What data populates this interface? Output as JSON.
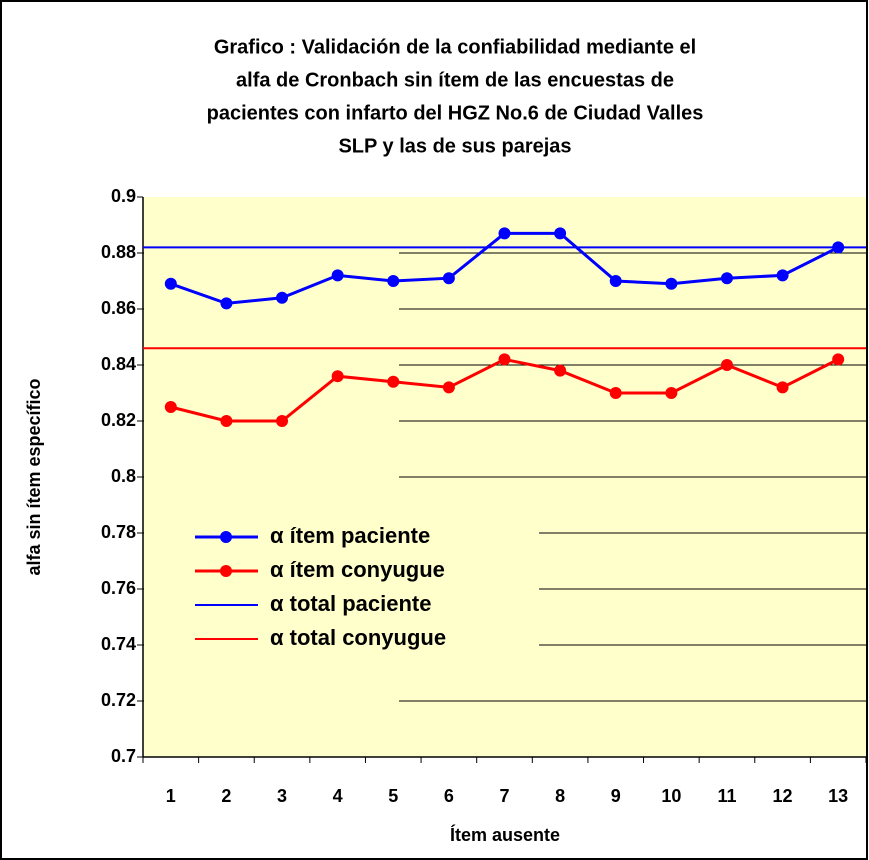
{
  "chart_data": {
    "type": "line",
    "title": [
      "Grafico : Validación de la confiabilidad mediante el",
      "alfa de Cronbach sin ítem de las encuestas de",
      "pacientes con infarto del HGZ No.6 de Ciudad Valles",
      "SLP y las de sus parejas"
    ],
    "x_label": "Ítem ausente",
    "y_label": "alfa sin ítem específico",
    "categories": [
      "1",
      "2",
      "3",
      "4",
      "5",
      "6",
      "7",
      "8",
      "9",
      "10",
      "11",
      "12",
      "13"
    ],
    "series": [
      {
        "name": "α ítem paciente",
        "color": "#0000ff",
        "values": [
          0.869,
          0.862,
          0.864,
          0.872,
          0.87,
          0.871,
          0.887,
          0.887,
          0.87,
          0.869,
          0.871,
          0.872,
          0.882
        ]
      },
      {
        "name": "α ítem conyugue",
        "color": "#ff0000",
        "values": [
          0.825,
          0.82,
          0.82,
          0.836,
          0.834,
          0.832,
          0.842,
          0.838,
          0.83,
          0.83,
          0.84,
          0.832,
          0.842
        ]
      }
    ],
    "reference_lines": [
      {
        "name": "α total paciente",
        "color": "#0000ff",
        "value": 0.882
      },
      {
        "name": "α total conyugue",
        "color": "#ff0000",
        "value": 0.846
      }
    ],
    "ylim": [
      0.7,
      0.9
    ],
    "yticks": [
      {
        "value": 0.7,
        "label": "0.7"
      },
      0.72,
      0.74,
      0.76,
      0.78,
      {
        "value": 0.8,
        "label": "0.8"
      },
      0.82,
      0.84,
      0.86,
      0.88,
      {
        "value": 0.9,
        "label": "0.9"
      }
    ],
    "grid": true,
    "background": "#ffffcc"
  }
}
